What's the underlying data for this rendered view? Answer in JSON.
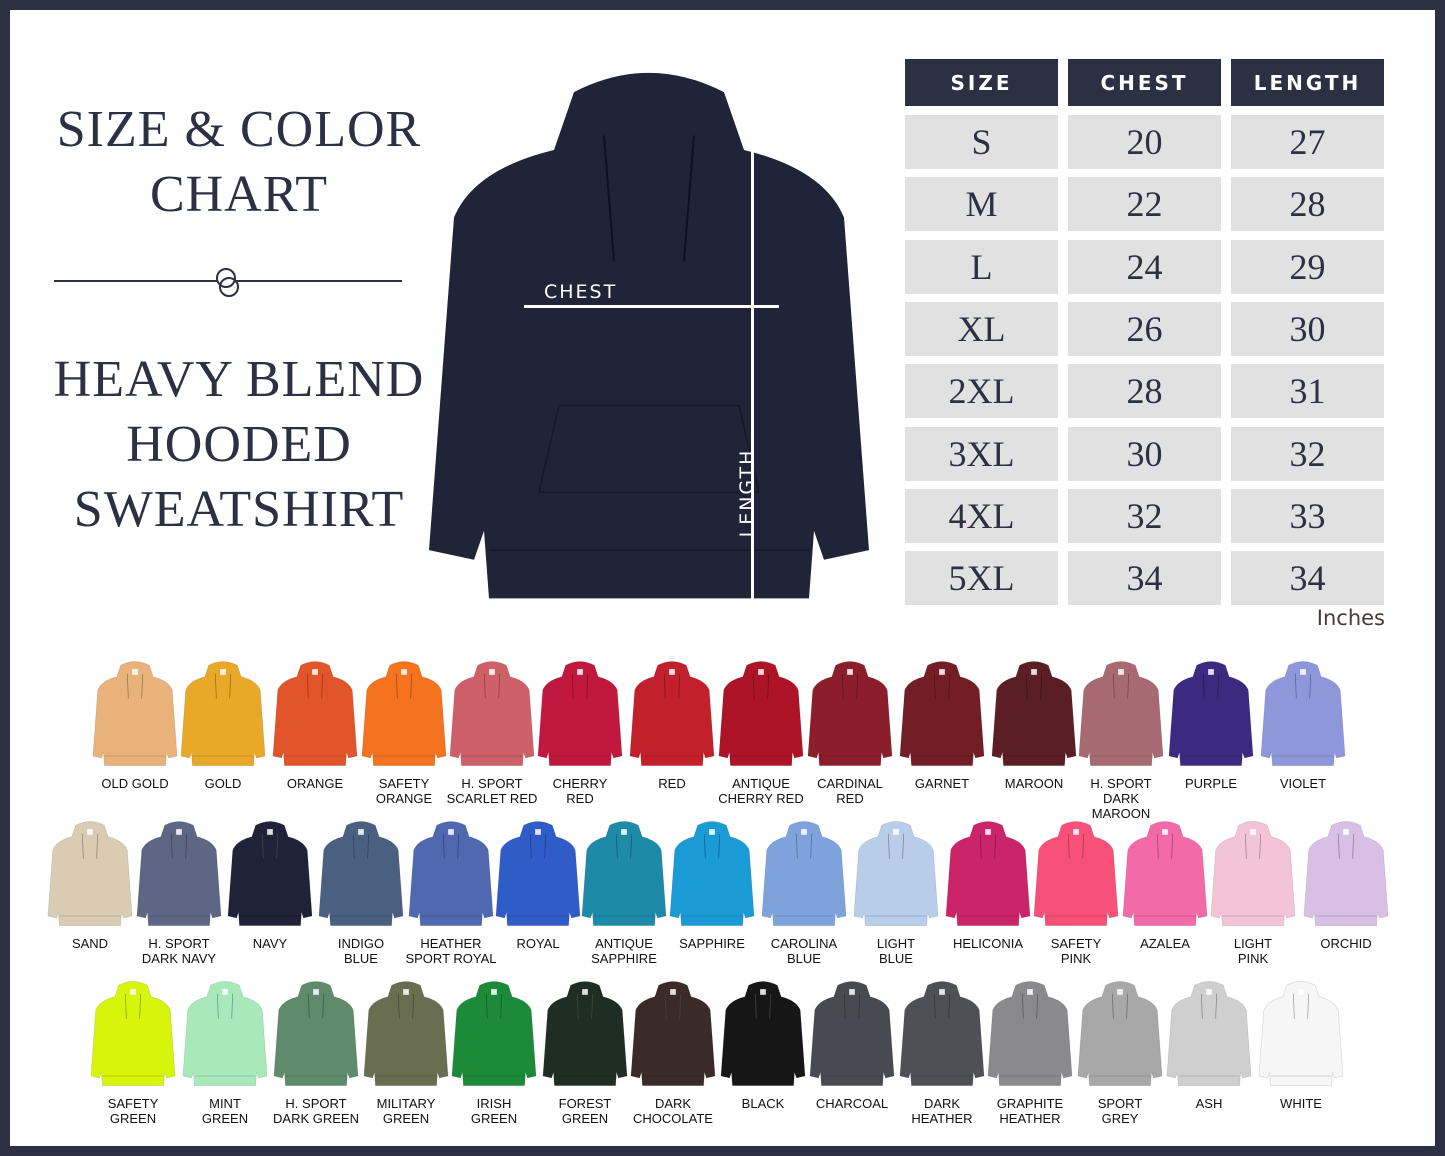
{
  "heading": {
    "line1": "SIZE & COLOR",
    "line2": "CHART",
    "product_line1": "HEAVY BLEND",
    "product_line2": "HOODED",
    "product_line3": "SWEATSHIRT"
  },
  "main_hoodie": {
    "color": "#1f2438",
    "chest_label": "CHEST",
    "length_label": "LENGTH"
  },
  "size_table": {
    "headers": [
      "SIZE",
      "CHEST",
      "LENGTH"
    ],
    "rows": [
      [
        "S",
        "20",
        "27"
      ],
      [
        "M",
        "22",
        "28"
      ],
      [
        "L",
        "24",
        "29"
      ],
      [
        "XL",
        "26",
        "30"
      ],
      [
        "2XL",
        "28",
        "31"
      ],
      [
        "3XL",
        "30",
        "32"
      ],
      [
        "4XL",
        "32",
        "33"
      ],
      [
        "5XL",
        "34",
        "34"
      ]
    ],
    "unit": "Inches"
  },
  "colors": [
    [
      {
        "name": "OLD GOLD",
        "hex": "#e9b27a"
      },
      {
        "name": "GOLD",
        "hex": "#e8a828"
      },
      {
        "name": "ORANGE",
        "hex": "#e2552a"
      },
      {
        "name": "SAFETY\nORANGE",
        "hex": "#f5721f"
      },
      {
        "name": "H. SPORT\nSCARLET RED",
        "hex": "#cd6068"
      },
      {
        "name": "CHERRY\nRED",
        "hex": "#c0183e"
      },
      {
        "name": "RED",
        "hex": "#c2202a"
      },
      {
        "name": "ANTIQUE\nCHERRY RED",
        "hex": "#ad1428"
      },
      {
        "name": "CARDINAL\nRED",
        "hex": "#8c1e2c"
      },
      {
        "name": "GARNET",
        "hex": "#731d26"
      },
      {
        "name": "MAROON",
        "hex": "#5a1e24"
      },
      {
        "name": "H. SPORT\nDARK MAROON",
        "hex": "#a86a72"
      },
      {
        "name": "PURPLE",
        "hex": "#3c2a80"
      },
      {
        "name": "VIOLET",
        "hex": "#8f97db"
      }
    ],
    [
      {
        "name": "SAND",
        "hex": "#d9ccb3"
      },
      {
        "name": "H. SPORT\nDARK NAVY",
        "hex": "#5d6684"
      },
      {
        "name": "NAVY",
        "hex": "#1f2238"
      },
      {
        "name": "INDIGO\nBLUE",
        "hex": "#4a6080"
      },
      {
        "name": "HEATHER\nSPORT ROYAL",
        "hex": "#4f68b0"
      },
      {
        "name": "ROYAL",
        "hex": "#2f5cc7"
      },
      {
        "name": "ANTIQUE\nSAPPHIRE",
        "hex": "#1d8aa8"
      },
      {
        "name": "SAPPHIRE",
        "hex": "#1a9bd6"
      },
      {
        "name": "CAROLINA\nBLUE",
        "hex": "#7ea2dc"
      },
      {
        "name": "LIGHT\nBLUE",
        "hex": "#b8cde9"
      },
      {
        "name": "HELICONIA",
        "hex": "#cc2468"
      },
      {
        "name": "SAFETY\nPINK",
        "hex": "#f7517a"
      },
      {
        "name": "AZALEA",
        "hex": "#f26aa8"
      },
      {
        "name": "LIGHT\nPINK",
        "hex": "#f2c4d6"
      },
      {
        "name": "ORCHID",
        "hex": "#d8bfe6"
      }
    ],
    [
      {
        "name": "SAFETY\nGREEN",
        "hex": "#d6f50a"
      },
      {
        "name": "MINT\nGREEN",
        "hex": "#a9e8b8"
      },
      {
        "name": "H. SPORT\nDARK GREEN",
        "hex": "#5f8a6c"
      },
      {
        "name": "MILITARY\nGREEN",
        "hex": "#6a6e50"
      },
      {
        "name": "IRISH\nGREEN",
        "hex": "#1d8a3a"
      },
      {
        "name": "FOREST\nGREEN",
        "hex": "#1f2e22"
      },
      {
        "name": "DARK\nCHOCOLATE",
        "hex": "#3a2b28"
      },
      {
        "name": "BLACK",
        "hex": "#161616"
      },
      {
        "name": "CHARCOAL",
        "hex": "#474a50"
      },
      {
        "name": "DARK\nHEATHER",
        "hex": "#4f5056"
      },
      {
        "name": "GRAPHITE\nHEATHER",
        "hex": "#8a8a8c"
      },
      {
        "name": "SPORT\nGREY",
        "hex": "#a8a8a8"
      },
      {
        "name": "ASH",
        "hex": "#cfcfcf"
      },
      {
        "name": "WHITE",
        "hex": "#f6f6f6"
      }
    ]
  ]
}
